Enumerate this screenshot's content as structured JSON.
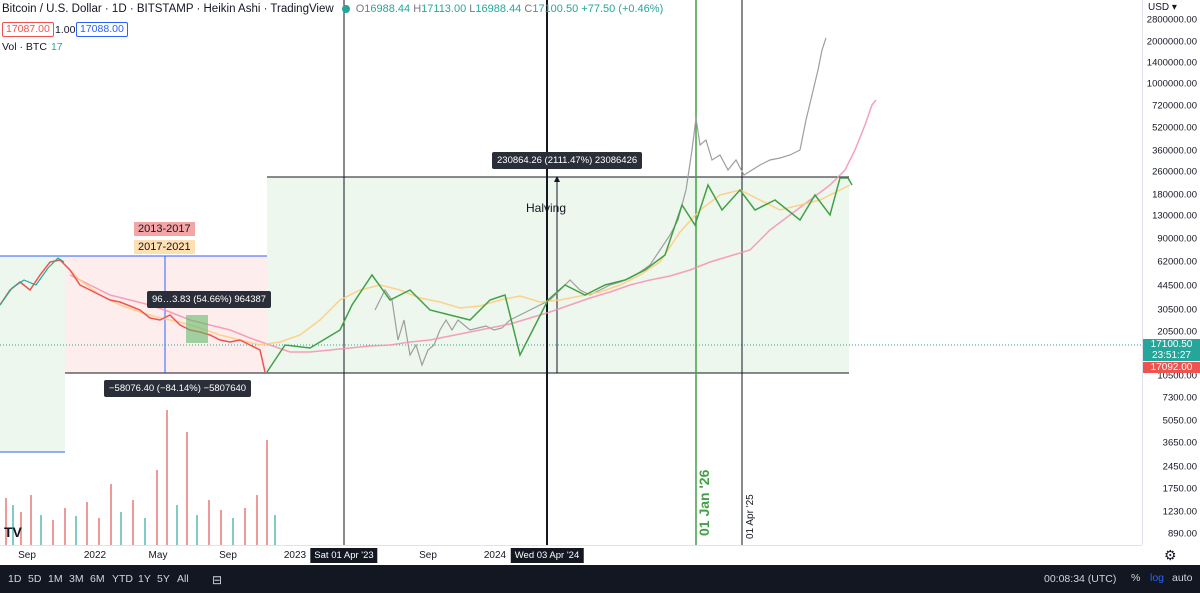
{
  "legend": {
    "title": "Bitcoin / U.S. Dollar · 1D · BITSTAMP · Heikin Ashi · TradingView",
    "open_label": "O",
    "open": "16988.44",
    "high_label": "H",
    "high": "17113.00",
    "low_label": "L",
    "low": "16988.44",
    "close_label": "C",
    "close": "17100.50",
    "change": "+77.50 (+0.46%)",
    "sell_price": "17087.00",
    "spread": "1.00",
    "buy_price": "17088.00",
    "volume_label": "Vol · BTC",
    "volume_value": "17"
  },
  "price_axis": {
    "currency": "USD",
    "ticks": [
      "2800000.00",
      "2000000.00",
      "1400000.00",
      "1000000.00",
      "720000.00",
      "520000.00",
      "360000.00",
      "260000.00",
      "180000.00",
      "130000.00",
      "90000.00",
      "62000.00",
      "44500.00",
      "30500.00",
      "20500.00",
      "10500.00",
      "7300.00",
      "5050.00",
      "3650.00",
      "2450.00",
      "1750.00",
      "1230.00",
      "890.00"
    ],
    "last_price": "17100.50",
    "countdown": "23:51:27",
    "bid_price": "17092.00"
  },
  "time_axis": {
    "ticks": [
      "Sep",
      "2022",
      "May",
      "Sep",
      "2023",
      "Sep",
      "2024"
    ],
    "cursor_labels": [
      "Sat 01 Apr '23",
      "Wed 03 Apr '24"
    ]
  },
  "annotations": {
    "cycle_2013": "2013-2017",
    "cycle_2017": "2017-2021",
    "halving": "Halving",
    "measure_up": "230864.26 (2111.47%) 23086426",
    "measure_down": "−58076.40 (−84.14%) −5807640",
    "measure_mid": "96…3.83 (54.66%) 964387",
    "vline_green": "01 Jan '26",
    "vline_black": "01 Apr '25"
  },
  "bottom_bar": {
    "ranges": [
      "1D",
      "5D",
      "1M",
      "3M",
      "6M",
      "YTD",
      "1Y",
      "5Y",
      "All"
    ],
    "clock": "00:08:34 (UTC)",
    "percent": "%",
    "log": "log",
    "auto": "auto"
  },
  "colors": {
    "up": "#26a69a",
    "down": "#ef5350",
    "green_line": "#43a047",
    "pink": "#f48fb1",
    "orange": "#ffcc80",
    "gray": "#9e9e9e",
    "accent": "#2962ff"
  },
  "chart_data": {
    "type": "line",
    "title": "Bitcoin / U.S. Dollar · 1D · BITSTAMP · Heikin Ashi",
    "y_scale": "log",
    "series": [
      {
        "name": "2013-2017",
        "color": "#f48fb1"
      },
      {
        "name": "2017-2021",
        "color": "#ffcc80"
      }
    ]
  }
}
